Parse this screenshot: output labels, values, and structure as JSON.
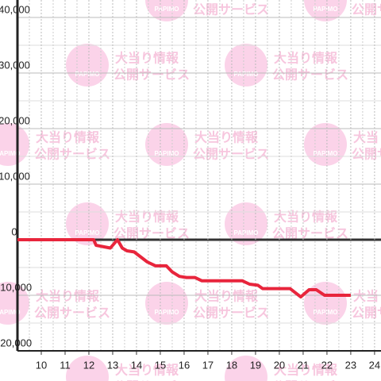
{
  "watermark": {
    "logo": "PAPIMO",
    "line1": "大当り情報",
    "line2": "公開サービス"
  },
  "chart_data": {
    "type": "line",
    "color": "#e8253c",
    "grid": true,
    "x": [
      9,
      12.2,
      12.3,
      12.9,
      13.2,
      13.4,
      13.6,
      13.9,
      14.45,
      14.8,
      15.25,
      15.5,
      15.8,
      16.1,
      16.45,
      16.75,
      18.45,
      18.75,
      19.1,
      19.3,
      20.45,
      20.9,
      21.25,
      21.55,
      21.9,
      23.0
    ],
    "values": [
      0,
      0,
      -1000,
      -1500,
      0,
      -1500,
      -2000,
      -2200,
      -4000,
      -4700,
      -4700,
      -5800,
      -6600,
      -6800,
      -6800,
      -7400,
      -7400,
      -8000,
      -8200,
      -8800,
      -8800,
      -10300,
      -9000,
      -9000,
      -10000,
      -10000
    ],
    "xlim": [
      9,
      24.27
    ],
    "ylim": [
      -20000,
      40000
    ],
    "xticks": [
      10,
      11,
      12,
      13,
      14,
      15,
      16,
      17,
      18,
      19,
      20,
      21,
      22,
      23,
      24
    ],
    "minor_xticks": [
      9.5,
      10.5,
      11.5,
      12.5,
      13.5,
      14.5,
      15.5,
      16.5,
      17.5,
      18.5,
      19.5,
      20.5,
      21.5,
      22.5,
      23.5
    ],
    "yticks": [
      {
        "value": 40000,
        "label": "40,000"
      },
      {
        "value": 30000,
        "label": "30,000"
      },
      {
        "value": 20000,
        "label": "20,000"
      },
      {
        "value": 10000,
        "label": "10,000"
      },
      0,
      {
        "value": -10000,
        "label": "-10,000"
      },
      {
        "value": -20000,
        "label": "-20,000"
      }
    ],
    "minor_yticks": [
      35000,
      25000,
      15000,
      5000,
      -5000,
      -15000
    ]
  }
}
